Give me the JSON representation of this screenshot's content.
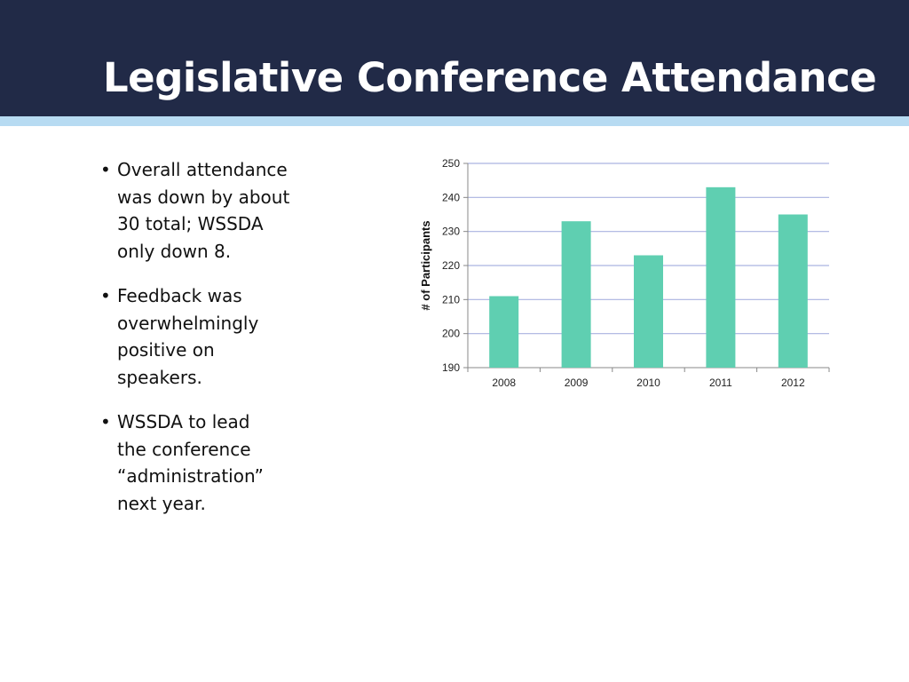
{
  "slide": {
    "title": "Legislative Conference Attendance",
    "bullets": [
      "Overall attendance\nwas down by about\n30 total; WSSDA\nonly down 8.",
      "Feedback was\noverwhelmingly\npositive on\nspeakers.",
      "WSSDA to lead\nthe conference\n“administration”\nnext year."
    ]
  },
  "colors": {
    "header": "#212a47",
    "header_stripe": "#b7dbf2",
    "bar": "#5fcfb1",
    "gridline": "#aab3e0"
  },
  "chart_data": {
    "type": "bar",
    "title": "",
    "xlabel": "",
    "ylabel": "# of Participants",
    "categories": [
      "2008",
      "2009",
      "2010",
      "2011",
      "2012"
    ],
    "values": [
      211,
      233,
      223,
      243,
      235
    ],
    "ylim": [
      190,
      250
    ],
    "yticks": [
      190,
      200,
      210,
      220,
      230,
      240,
      250
    ],
    "grid": true,
    "legend": "none"
  }
}
